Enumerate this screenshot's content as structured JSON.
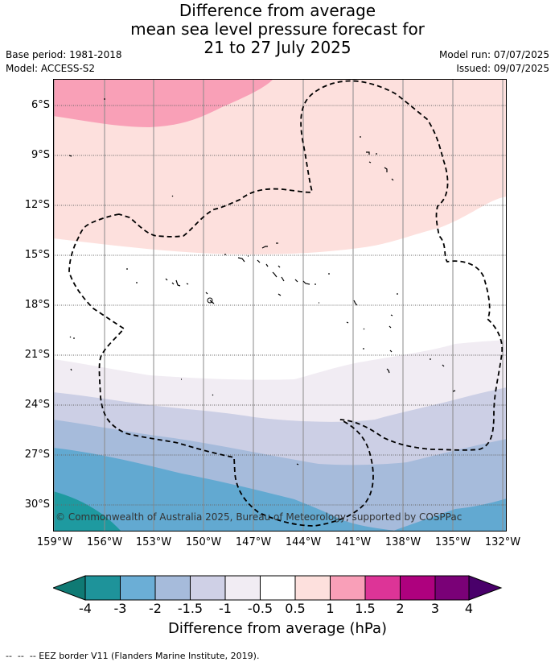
{
  "header": {
    "title_line1": "Difference from average",
    "title_line2": "mean sea level pressure forecast for",
    "title_line3": "21 to 27 July 2025",
    "base_period": "Base period: 1981-2018",
    "model": "Model: ACCESS-S2",
    "model_run": "Model run: 07/07/2025",
    "issued": "Issued: 09/07/2025"
  },
  "map": {
    "copyright": "© Commonwealth of Australia 2025, Bureau of Meteorology, supported by COSPPac",
    "lat_labels": [
      "6°S",
      "9°S",
      "12°S",
      "15°S",
      "18°S",
      "21°S",
      "24°S",
      "27°S",
      "30°S"
    ],
    "lon_labels": [
      "159°W",
      "156°W",
      "153°W",
      "150°W",
      "147°W",
      "144°W",
      "141°W",
      "138°W",
      "135°W",
      "132°W"
    ],
    "shading_colors": {
      "-3.5": "#1e9aa0",
      "-2.5": "#62a9d1",
      "-1.75": "#a6bbdb",
      "-1.25": "#cccfe5",
      "-0.75": "#f1ecf3",
      "0": "#ffffff",
      "0.75": "#fde0dd",
      "1.25": "#f9a0b7"
    },
    "eez_border_style": "dashed"
  },
  "colorbar": {
    "ticks": [
      "-4",
      "-3",
      "-2",
      "-1.5",
      "-1",
      "-0.5",
      "0.5",
      "1",
      "1.5",
      "2",
      "3",
      "4"
    ],
    "colors": [
      "#0f7a74",
      "#1e939a",
      "#6baed6",
      "#a6bbdb",
      "#cfd0e6",
      "#f1ecf3",
      "#ffffff",
      "#fde0dd",
      "#f99fb8",
      "#dd3497",
      "#ae017e",
      "#7a0177",
      "#49006a"
    ],
    "label": "Difference from average (hPa)"
  },
  "footer": {
    "legend": "--  --  -- EEZ border V11 (Flanders Marine Institute, 2019)."
  }
}
